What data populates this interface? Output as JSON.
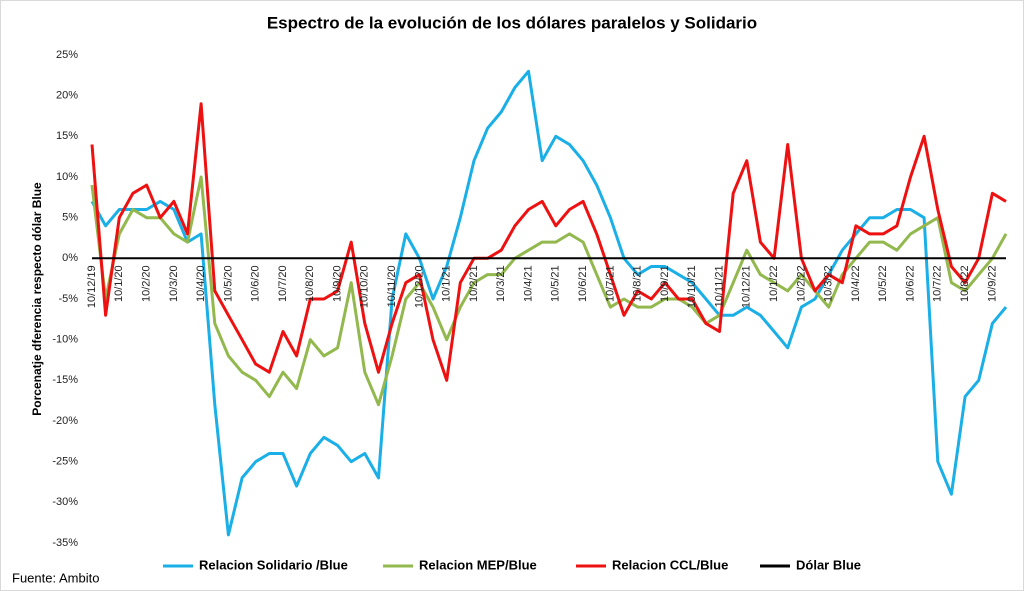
{
  "chart_data": {
    "type": "line",
    "title": "Espectro de la evolución de los dólares paralelos y Solidario",
    "y_label": "Porcenatje dferencia respecto dólar Blue",
    "source": "Fuente: Ambito",
    "categories": [
      "10/12/19",
      null,
      "10/1/20",
      null,
      "10/2/20",
      null,
      "10/3/20",
      null,
      "10/4/20",
      null,
      "10/5/20",
      null,
      "10/6/20",
      null,
      "10/7/20",
      null,
      "10/8/20",
      null,
      "10/9/20",
      null,
      "10/10/20",
      null,
      "10/11/20",
      null,
      "10/12/20",
      null,
      "10/1/21",
      null,
      "10/2/21",
      null,
      "10/3/21",
      null,
      "10/4/21",
      null,
      "10/5/21",
      null,
      "10/6/21",
      null,
      "10/7/21",
      null,
      "10/8/21",
      null,
      "10/9/21",
      null,
      "10/10/21",
      null,
      "10/11/21",
      null,
      "10/12/21",
      null,
      "10/1/22",
      null,
      "10/2/22",
      null,
      "10/3/22",
      null,
      "10/4/22",
      null,
      "10/5/22",
      null,
      "10/6/22",
      null,
      "10/7/22",
      null,
      "10/8/22",
      null,
      "10/9/22",
      null
    ],
    "series": [
      {
        "name": "Relacion Solidario /Blue",
        "color": "#1aafe6",
        "values": [
          7,
          4,
          6,
          6,
          6,
          7,
          6,
          2,
          3,
          -18,
          -34,
          -27,
          -25,
          -24,
          -24,
          -28,
          -24,
          -22,
          -23,
          -25,
          -24,
          -27,
          -5,
          3,
          0,
          -5,
          -1,
          5,
          12,
          16,
          18,
          21,
          23,
          12,
          15,
          14,
          12,
          9,
          5,
          0,
          -2,
          -1,
          -1,
          -2,
          -3,
          -5,
          -7,
          -7,
          -6,
          -7,
          -9,
          -11,
          -6,
          -5,
          -2,
          1,
          3,
          5,
          5,
          6,
          6,
          5,
          -25,
          -29,
          -17,
          -15,
          -8,
          -6
        ]
      },
      {
        "name": "Relacion MEP/Blue",
        "color": "#92b84e",
        "values": [
          9,
          -5,
          3,
          6,
          5,
          5,
          3,
          2,
          10,
          -8,
          -12,
          -14,
          -15,
          -17,
          -14,
          -16,
          -10,
          -12,
          -11,
          -3,
          -14,
          -18,
          -12,
          -5,
          -3,
          -6,
          -10,
          -6,
          -3,
          -2,
          -2,
          0,
          1,
          2,
          2,
          3,
          2,
          -2,
          -6,
          -5,
          -6,
          -6,
          -5,
          -5,
          -6,
          -8,
          -7,
          -3,
          1,
          -2,
          -3,
          -4,
          -2,
          -4,
          -6,
          -2,
          0,
          2,
          2,
          1,
          3,
          4,
          5,
          -3,
          -4,
          -2,
          0,
          3
        ]
      },
      {
        "name": "Relacion CCL/Blue",
        "color": "#ee1111",
        "values": [
          14,
          -7,
          5,
          8,
          9,
          5,
          7,
          3,
          19,
          -4,
          -7,
          -10,
          -13,
          -14,
          -9,
          -12,
          -5,
          -5,
          -4,
          2,
          -8,
          -14,
          -8,
          -3,
          -2,
          -10,
          -15,
          -3,
          0,
          0,
          1,
          4,
          6,
          7,
          4,
          6,
          7,
          3,
          -2,
          -7,
          -4,
          -5,
          -3,
          -5,
          -5,
          -8,
          -9,
          8,
          12,
          2,
          0,
          14,
          0,
          -4,
          -2,
          -3,
          4,
          3,
          3,
          4,
          10,
          15,
          6,
          -1,
          -3,
          0,
          8,
          7
        ]
      },
      {
        "name": "Dólar Blue",
        "color": "#000000",
        "values": [
          0,
          0,
          0,
          0,
          0,
          0,
          0,
          0,
          0,
          0,
          0,
          0,
          0,
          0,
          0,
          0,
          0,
          0,
          0,
          0,
          0,
          0,
          0,
          0,
          0,
          0,
          0,
          0,
          0,
          0,
          0,
          0,
          0,
          0,
          0,
          0,
          0,
          0,
          0,
          0,
          0,
          0,
          0,
          0,
          0,
          0,
          0,
          0,
          0,
          0,
          0,
          0,
          0,
          0,
          0,
          0,
          0,
          0,
          0,
          0,
          0,
          0,
          0,
          0,
          0,
          0,
          0,
          0
        ]
      }
    ],
    "ylim": [
      -35,
      25
    ],
    "yticks": [
      {
        "value": -35,
        "label": "-35%"
      },
      {
        "value": -30,
        "label": "-30%"
      },
      {
        "value": -25,
        "label": "-25%"
      },
      {
        "value": -20,
        "label": "-20%"
      },
      {
        "value": -15,
        "label": "-15%"
      },
      {
        "value": -10,
        "label": "-10%"
      },
      {
        "value": -5,
        "label": "-5%"
      },
      {
        "value": 0,
        "label": "0%"
      },
      {
        "value": 5,
        "label": "5%"
      },
      {
        "value": 10,
        "label": "10%"
      },
      {
        "value": 15,
        "label": "15%"
      },
      {
        "value": 20,
        "label": "20%"
      },
      {
        "value": 25,
        "label": "25%"
      }
    ],
    "grid": false,
    "legend": "bottom"
  }
}
